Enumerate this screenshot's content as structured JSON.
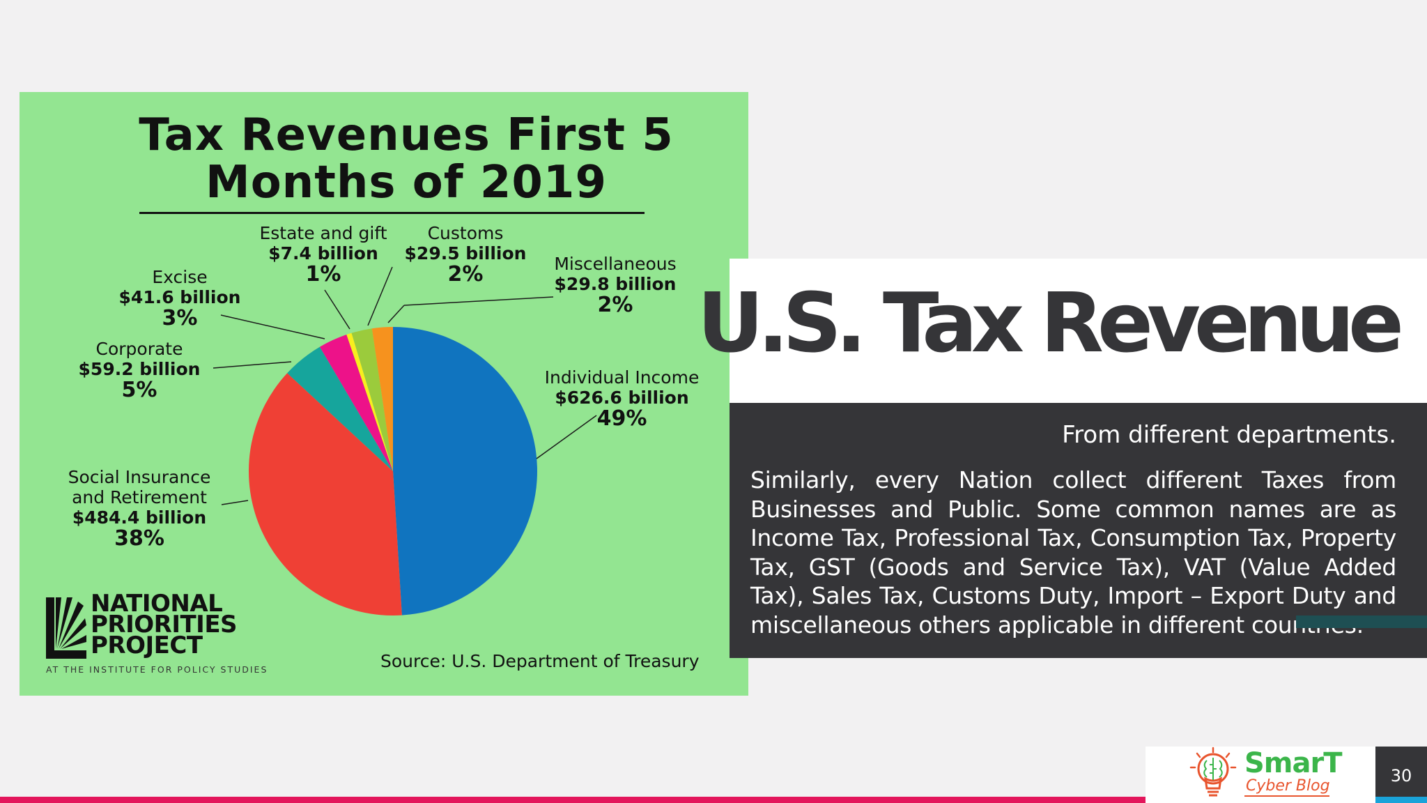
{
  "chart_data": {
    "type": "pie",
    "title": "Tax Revenues First 5 Months of 2019",
    "source": "Source: U.S. Department of Treasury",
    "slices": [
      {
        "name": "Individual Income",
        "value_text": "$626.6 billion",
        "value": 626.6,
        "percent_text": "49%",
        "percent": 49,
        "color": "#1074bf"
      },
      {
        "name": "Social Insurance and Retirement",
        "value_text": "$484.4 billion",
        "value": 484.4,
        "percent_text": "38%",
        "percent": 38,
        "color": "#ef4035"
      },
      {
        "name": "Corporate",
        "value_text": "$59.2 billion",
        "value": 59.2,
        "percent_text": "5%",
        "percent": 5,
        "color": "#16a59c"
      },
      {
        "name": "Excise",
        "value_text": "$41.6 billion",
        "value": 41.6,
        "percent_text": "3%",
        "percent": 3,
        "color": "#ed1289"
      },
      {
        "name": "Estate and gift",
        "value_text": "$7.4 billion",
        "value": 7.4,
        "percent_text": "1%",
        "percent": 1,
        "color": "#f8ee1e"
      },
      {
        "name": "Customs",
        "value_text": "$29.5 billion",
        "value": 29.5,
        "percent_text": "2%",
        "percent": 2,
        "color": "#9bcb3c"
      },
      {
        "name": "Miscellaneous",
        "value_text": "$29.8 billion",
        "value": 29.8,
        "percent_text": "2%",
        "percent": 2,
        "color": "#f6921e"
      }
    ],
    "background": "#93e591"
  },
  "chart_logo": {
    "lines": [
      "NATIONAL",
      "PRIORITIES",
      "PROJECT"
    ],
    "subtitle": "AT THE INSTITUTE FOR POLICY STUDIES"
  },
  "slide": {
    "title": "U.S. Tax Revenue",
    "subtitle": "From different departments.",
    "body": "Similarly, every Nation collect different Taxes from Businesses and Public. Some common names are as Income Tax, Professional Tax, Consumption Tax, Property Tax, GST (Goods and Service Tax), VAT (Value Added Tax), Sales Tax, Customs Duty, Import – Export Duty and miscellaneous others applicable in different countries.",
    "page_number": "30"
  },
  "footer_logo": {
    "brand": "SmarT",
    "tagline": "Cyber Blog"
  },
  "colors": {
    "accent_bar": "#e3165b",
    "dark_panel": "#353538",
    "page_accent": "#1aa3d9"
  }
}
